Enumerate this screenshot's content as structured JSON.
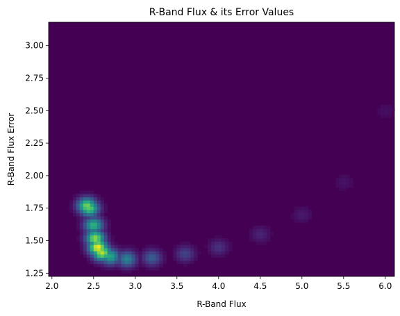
{
  "chart_data": {
    "type": "heatmap",
    "title": "R-Band Flux & its Error Values",
    "xlabel": "R-Band Flux",
    "ylabel": "R-Band Flux Error",
    "xlim": [
      1.96,
      6.11
    ],
    "ylim": [
      1.225,
      3.18
    ],
    "x_ticks": [
      2.0,
      2.5,
      3.0,
      3.5,
      4.0,
      4.5,
      5.0,
      5.5,
      6.0
    ],
    "x_tick_labels": [
      "2.0",
      "2.5",
      "3.0",
      "3.5",
      "4.0",
      "4.5",
      "5.0",
      "5.5",
      "6.0"
    ],
    "y_ticks": [
      1.25,
      1.5,
      1.75,
      2.0,
      2.25,
      2.5,
      2.75,
      3.0
    ],
    "y_tick_labels": [
      "1.25",
      "1.50",
      "1.75",
      "2.00",
      "2.25",
      "2.50",
      "2.75",
      "3.00"
    ],
    "colormap": "viridis",
    "background_color": "#440154",
    "grid": false,
    "legend": "none",
    "density_ridges": [
      {
        "x": 2.42,
        "y": 1.77,
        "intensity": 0.8
      },
      {
        "x": 2.45,
        "y": 1.75,
        "intensity": 0.75
      },
      {
        "x": 2.5,
        "y": 1.62,
        "intensity": 0.65
      },
      {
        "x": 2.52,
        "y": 1.52,
        "intensity": 0.85
      },
      {
        "x": 2.55,
        "y": 1.45,
        "intensity": 1.0
      },
      {
        "x": 2.6,
        "y": 1.41,
        "intensity": 0.9
      },
      {
        "x": 2.7,
        "y": 1.38,
        "intensity": 0.6
      },
      {
        "x": 2.9,
        "y": 1.36,
        "intensity": 0.45
      },
      {
        "x": 3.2,
        "y": 1.37,
        "intensity": 0.3
      },
      {
        "x": 3.6,
        "y": 1.4,
        "intensity": 0.2
      },
      {
        "x": 4.0,
        "y": 1.45,
        "intensity": 0.14
      },
      {
        "x": 4.5,
        "y": 1.55,
        "intensity": 0.1
      },
      {
        "x": 5.0,
        "y": 1.7,
        "intensity": 0.07
      },
      {
        "x": 5.5,
        "y": 1.95,
        "intensity": 0.05
      },
      {
        "x": 6.0,
        "y": 2.5,
        "intensity": 0.04
      }
    ]
  }
}
